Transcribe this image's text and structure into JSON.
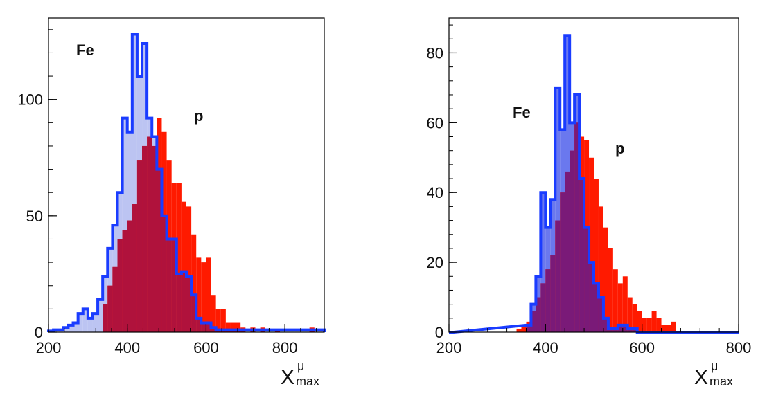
{
  "chart_data": [
    {
      "type": "histogram",
      "xlabel": "X",
      "xlabel_sub": "max",
      "xlabel_sup": "μ",
      "xlim": [
        200,
        900
      ],
      "ylim": [
        0,
        135
      ],
      "x_ticks": [
        200,
        400,
        600,
        800
      ],
      "y_ticks": [
        0,
        50,
        100
      ],
      "grid": false,
      "bin_width": 12.5,
      "series": [
        {
          "name": "p",
          "color": "#ff1a00",
          "overlap_color": "#b0123c",
          "bins": [
            [
              337.5,
              12
            ],
            [
              350,
              20
            ],
            [
              362.5,
              28
            ],
            [
              375,
              40
            ],
            [
              387.5,
              44
            ],
            [
              400,
              48
            ],
            [
              412.5,
              55
            ],
            [
              425,
              74
            ],
            [
              437.5,
              80
            ],
            [
              450,
              84
            ],
            [
              462.5,
              80
            ],
            [
              475,
              92
            ],
            [
              487.5,
              86
            ],
            [
              500,
              74
            ],
            [
              512.5,
              64
            ],
            [
              525,
              64
            ],
            [
              537.5,
              56
            ],
            [
              550,
              54
            ],
            [
              562.5,
              42
            ],
            [
              575,
              32
            ],
            [
              587.5,
              30
            ],
            [
              600,
              32
            ],
            [
              612.5,
              16
            ],
            [
              625,
              10
            ],
            [
              637.5,
              10
            ],
            [
              650,
              4
            ],
            [
              662.5,
              4
            ],
            [
              675,
              4
            ],
            [
              687.5,
              2
            ],
            [
              712.5,
              2
            ],
            [
              737.5,
              2
            ],
            [
              775,
              1
            ],
            [
              862.5,
              2
            ]
          ]
        },
        {
          "name": "Fe",
          "color": "#1a3cff",
          "fill": "#bcc4f2",
          "bins": [
            [
              200,
              0.5
            ],
            [
              212.5,
              1
            ],
            [
              225,
              1
            ],
            [
              237.5,
              2
            ],
            [
              250,
              3
            ],
            [
              262.5,
              4
            ],
            [
              275,
              8
            ],
            [
              287.5,
              10
            ],
            [
              300,
              6
            ],
            [
              312.5,
              8
            ],
            [
              325,
              14
            ],
            [
              337.5,
              24
            ],
            [
              350,
              36
            ],
            [
              362.5,
              46
            ],
            [
              375,
              60
            ],
            [
              387.5,
              92
            ],
            [
              400,
              86
            ],
            [
              412.5,
              128
            ],
            [
              425,
              110
            ],
            [
              437.5,
              124
            ],
            [
              450,
              92
            ],
            [
              462.5,
              84
            ],
            [
              475,
              70
            ],
            [
              487.5,
              50
            ],
            [
              500,
              40
            ],
            [
              512.5,
              40
            ],
            [
              525,
              25
            ],
            [
              537.5,
              26
            ],
            [
              550,
              24
            ],
            [
              562.5,
              16
            ],
            [
              575,
              6
            ],
            [
              587.5,
              4
            ],
            [
              600,
              4
            ],
            [
              612.5,
              2
            ],
            [
              625,
              1
            ],
            [
              637.5,
              1
            ],
            [
              650,
              1
            ],
            [
              662.5,
              1
            ],
            [
              675,
              1
            ],
            [
              687.5,
              1
            ],
            [
              700,
              1
            ],
            [
              712.5,
              1
            ],
            [
              725,
              1
            ],
            [
              737.5,
              1
            ],
            [
              750,
              1
            ],
            [
              762.5,
              1
            ],
            [
              775,
              1
            ],
            [
              787.5,
              1
            ],
            [
              800,
              1
            ],
            [
              812.5,
              1
            ],
            [
              825,
              1
            ],
            [
              837.5,
              1
            ],
            [
              850,
              1
            ],
            [
              862.5,
              1
            ],
            [
              875,
              1
            ],
            [
              887.5,
              1
            ]
          ]
        }
      ],
      "labels": {
        "fe": "Fe",
        "p": "p"
      }
    },
    {
      "type": "histogram",
      "xlabel": "X",
      "xlabel_sub": "max",
      "xlabel_sup": "μ",
      "xlim": [
        200,
        800
      ],
      "ylim": [
        0,
        90
      ],
      "x_ticks": [
        200,
        400,
        600,
        800
      ],
      "y_ticks": [
        0,
        20,
        40,
        60,
        80
      ],
      "grid": false,
      "bin_width": 10,
      "series": [
        {
          "name": "p",
          "color": "#ff1a00",
          "overlap_color": "#7a1a78",
          "bins": [
            [
              340,
              1
            ],
            [
              350,
              2
            ],
            [
              360,
              3
            ],
            [
              370,
              6
            ],
            [
              380,
              10
            ],
            [
              390,
              14
            ],
            [
              400,
              18
            ],
            [
              410,
              22
            ],
            [
              420,
              32
            ],
            [
              430,
              40
            ],
            [
              440,
              46
            ],
            [
              450,
              52
            ],
            [
              460,
              60
            ],
            [
              470,
              56
            ],
            [
              480,
              55
            ],
            [
              490,
              50
            ],
            [
              500,
              44
            ],
            [
              510,
              36
            ],
            [
              520,
              30
            ],
            [
              530,
              24
            ],
            [
              540,
              18
            ],
            [
              550,
              14
            ],
            [
              560,
              16
            ],
            [
              570,
              10
            ],
            [
              580,
              8
            ],
            [
              590,
              6
            ],
            [
              600,
              4
            ],
            [
              610,
              4
            ],
            [
              620,
              6
            ],
            [
              630,
              4
            ],
            [
              640,
              2
            ],
            [
              650,
              2
            ],
            [
              660,
              3
            ]
          ]
        },
        {
          "name": "Fe",
          "color": "#1a3cff",
          "fill": "#6a78ee",
          "bins": [
            [
              200,
              0
            ],
            [
              360,
              2
            ],
            [
              370,
              8
            ],
            [
              380,
              16
            ],
            [
              390,
              40
            ],
            [
              400,
              30
            ],
            [
              410,
              38
            ],
            [
              420,
              70
            ],
            [
              430,
              58
            ],
            [
              440,
              85
            ],
            [
              450,
              60
            ],
            [
              460,
              68
            ],
            [
              470,
              44
            ],
            [
              480,
              30
            ],
            [
              490,
              20
            ],
            [
              500,
              14
            ],
            [
              510,
              10
            ],
            [
              520,
              4
            ],
            [
              530,
              1
            ],
            [
              540,
              1
            ],
            [
              550,
              2
            ],
            [
              560,
              2
            ],
            [
              570,
              1
            ],
            [
              580,
              1
            ],
            [
              590,
              0
            ],
            [
              600,
              0
            ],
            [
              610,
              0
            ],
            [
              620,
              0
            ],
            [
              630,
              0
            ],
            [
              640,
              0
            ],
            [
              650,
              0
            ],
            [
              660,
              0
            ],
            [
              670,
              0
            ],
            [
              680,
              0
            ],
            [
              690,
              0
            ],
            [
              700,
              0
            ],
            [
              710,
              0
            ],
            [
              720,
              0
            ],
            [
              730,
              0
            ],
            [
              740,
              0
            ],
            [
              750,
              0
            ],
            [
              760,
              0
            ],
            [
              770,
              0
            ],
            [
              780,
              0
            ],
            [
              790,
              0
            ]
          ]
        }
      ],
      "labels": {
        "fe": "Fe",
        "p": "p"
      }
    }
  ]
}
